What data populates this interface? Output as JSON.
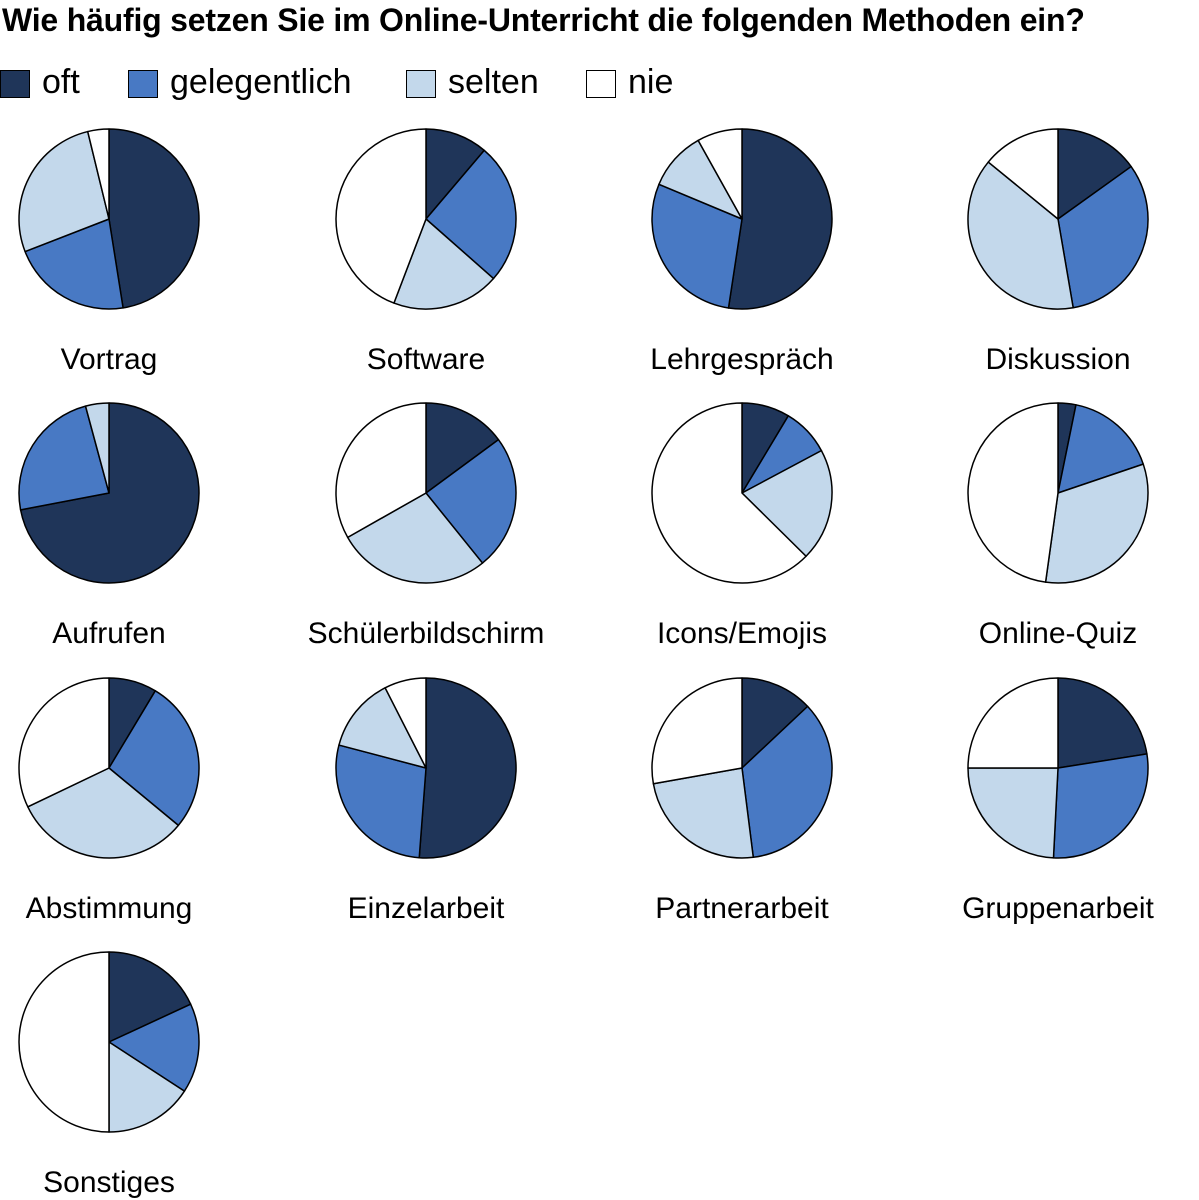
{
  "chart_data": {
    "type": "pie",
    "title": "Wie häufig setzen Sie im Online-Unterricht die folgenden Methoden ein?",
    "legend": [
      "oft",
      "gelegentlich",
      "selten",
      "nie"
    ],
    "colors": [
      "#1f3559",
      "#4879c4",
      "#c3d8eb",
      "#ffffff"
    ],
    "pies": [
      {
        "label": "Vortrag",
        "values": [
          47.5,
          21.6,
          27.1,
          3.8
        ]
      },
      {
        "label": "Software",
        "values": [
          11.2,
          25.3,
          19.3,
          44.2
        ]
      },
      {
        "label": "Lehrgespräch",
        "values": [
          52.4,
          28.9,
          10.6,
          8.1
        ]
      },
      {
        "label": "Diskussion",
        "values": [
          15.1,
          32.2,
          38.6,
          14.1
        ]
      },
      {
        "label": "Aufrufen",
        "values": [
          72.0,
          23.8,
          4.2,
          0
        ]
      },
      {
        "label": "Schülerbildschirm",
        "values": [
          14.9,
          24.3,
          27.6,
          33.2
        ]
      },
      {
        "label": "Icons/Emojis",
        "values": [
          8.6,
          8.6,
          20.2,
          62.6
        ]
      },
      {
        "label": "Online-Quiz",
        "values": [
          3.2,
          16.6,
          32.4,
          47.8
        ]
      },
      {
        "label": "Abstimmung",
        "values": [
          8.6,
          27.4,
          31.9,
          32.1
        ]
      },
      {
        "label": "Einzelarbeit",
        "values": [
          51.2,
          27.9,
          13.4,
          7.5
        ]
      },
      {
        "label": "Partnerarbeit",
        "values": [
          13.0,
          35.0,
          24.2,
          27.8
        ]
      },
      {
        "label": "Gruppenarbeit",
        "values": [
          22.5,
          28.3,
          24.2,
          25.0
        ]
      },
      {
        "label": "Sonstiges",
        "values": [
          18.1,
          16.1,
          15.8,
          50.0
        ]
      }
    ]
  }
}
